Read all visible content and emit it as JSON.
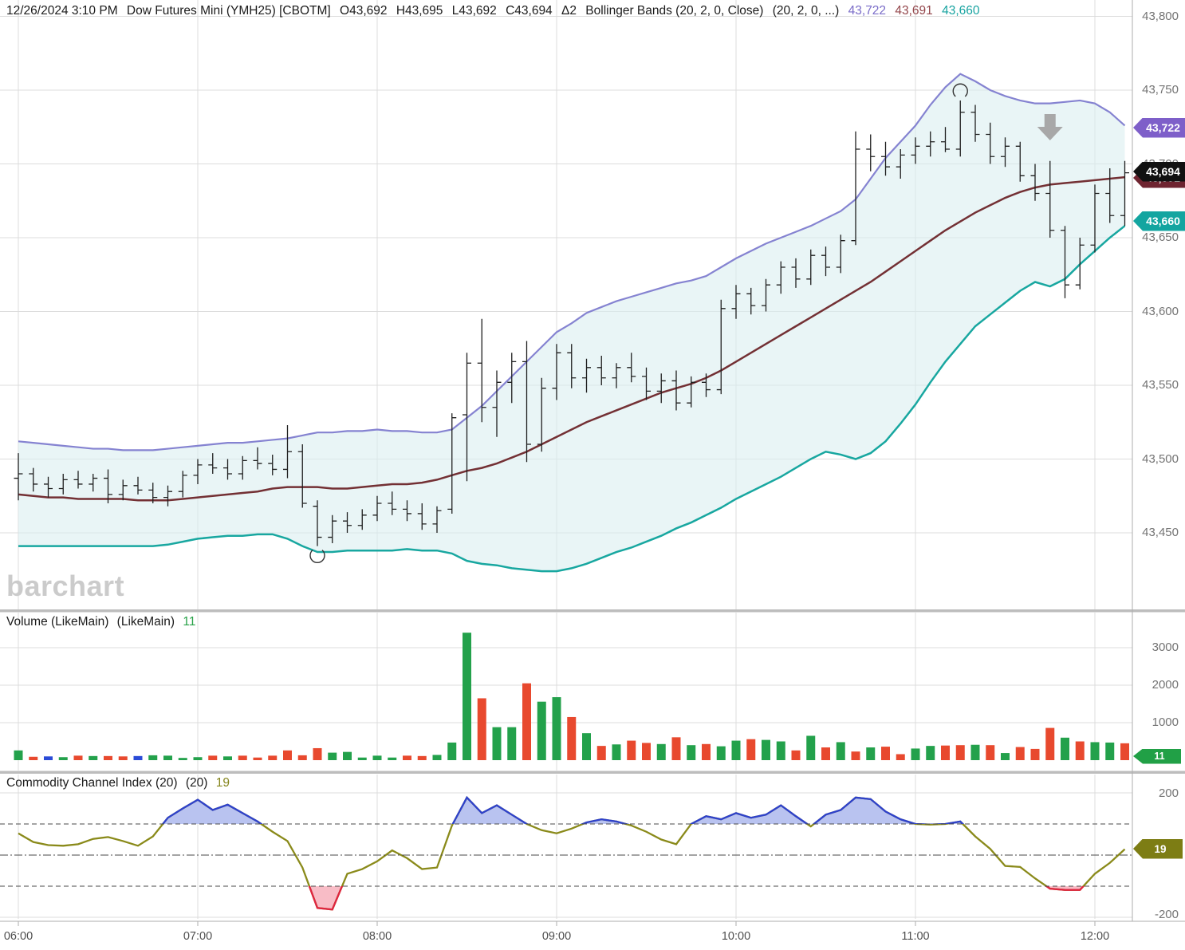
{
  "header": {
    "datetime": "12/26/2024 3:10 PM",
    "symbol_title": "Dow Futures Mini (YMH25) [CBOTM]",
    "open": "O43,692",
    "high": "H43,695",
    "low": "L43,692",
    "close": "C43,694",
    "change": "Δ2",
    "study_bb": "Bollinger Bands (20, 2, 0, Close)",
    "study_params": "(20, 2, 0, ...)",
    "bb_upper_value": "43,722",
    "bb_middle_value": "43,691",
    "bb_lower_value": "43,660"
  },
  "watermark": "barchart",
  "panels": {
    "volume_study": "Volume (LikeMain)",
    "volume_study2": "(LikeMain)",
    "volume_value": "11",
    "cci_study": "Commodity Channel Index (20)",
    "cci_study2": "(20)",
    "cci_value": "19"
  },
  "badges": [
    {
      "id": "bb-upper",
      "text": "43,722"
    },
    {
      "id": "bb-middle",
      "text": "43,691"
    },
    {
      "id": "last-price",
      "text": "43,694"
    },
    {
      "id": "bb-lower",
      "text": "43,660"
    },
    {
      "id": "volume",
      "text": "11"
    },
    {
      "id": "cci",
      "text": "19"
    }
  ],
  "colors": {
    "bb_fill": "#daeef0",
    "bb_upper": "#8583d1",
    "bb_middle": "#733034",
    "bb_lower": "#18a7a0",
    "bar": "#1f1f1f",
    "vol_up": "#23a14b",
    "vol_down": "#e8492e",
    "vol_neutral": "#2a4bd7",
    "cci_line": "#8a8a1a",
    "cci_over_line": "#2e41cc",
    "cci_over_fill": "#b9c3f0",
    "cci_under_line": "#e02440",
    "cci_under_fill": "#f8bcc6",
    "grid": "#dcdcdc",
    "dashed_level": "#4a4a4a",
    "axis_line": "#adadad",
    "axis_text": "#737373",
    "arrow": "#a8a8a8",
    "badge_upper": "#7e5fc9",
    "badge_middle": "#6e2430",
    "badge_close": "#111111",
    "badge_lower": "#13a5a0",
    "badge_volume": "#21a046",
    "badge_cci": "#7d7d14"
  },
  "chart_data": {
    "type": "ohlc",
    "symbol": "Dow Futures Mini (YMH25) [CBOTM]",
    "interval": "5-minute",
    "start_time": "06:00",
    "x_tick_labels": [
      "06:00",
      "07:00",
      "08:00",
      "09:00",
      "10:00",
      "11:00",
      "12:00"
    ],
    "price_axis": {
      "min": 43420,
      "max": 43800,
      "tick_step": 50,
      "tick_values": [
        43800,
        43750,
        43700,
        43650,
        43600,
        43550,
        43500,
        43450
      ],
      "tick_labels": [
        "43,800",
        "43,750",
        "43,700",
        "43,650",
        "43,600",
        "43,550",
        "43,500",
        "43,450"
      ]
    },
    "ohlc": [
      [
        43487,
        43504,
        43472,
        43490
      ],
      [
        43490,
        43494,
        43478,
        43483
      ],
      [
        43483,
        43488,
        43474,
        43480
      ],
      [
        43480,
        43490,
        43476,
        43486
      ],
      [
        43486,
        43492,
        43480,
        43483
      ],
      [
        43483,
        43490,
        43478,
        43487
      ],
      [
        43487,
        43493,
        43470,
        43476
      ],
      [
        43476,
        43486,
        43472,
        43482
      ],
      [
        43482,
        43488,
        43476,
        43479
      ],
      [
        43479,
        43484,
        43470,
        43474
      ],
      [
        43474,
        43482,
        43468,
        43478
      ],
      [
        43478,
        43492,
        43474,
        43489
      ],
      [
        43489,
        43500,
        43483,
        43496
      ],
      [
        43496,
        43504,
        43490,
        43494
      ],
      [
        43494,
        43500,
        43486,
        43490
      ],
      [
        43490,
        43502,
        43486,
        43499
      ],
      [
        43499,
        43508,
        43493,
        43497
      ],
      [
        43497,
        43503,
        43489,
        43493
      ],
      [
        43493,
        43523,
        43487,
        43505
      ],
      [
        43505,
        43510,
        43467,
        43470
      ],
      [
        43468,
        43472,
        43441,
        43447
      ],
      [
        43447,
        43462,
        43443,
        43458
      ],
      [
        43458,
        43464,
        43450,
        43455
      ],
      [
        43455,
        43466,
        43452,
        43462
      ],
      [
        43462,
        43475,
        43458,
        43470
      ],
      [
        43470,
        43478,
        43462,
        43466
      ],
      [
        43466,
        43472,
        43458,
        43463
      ],
      [
        43463,
        43470,
        43452,
        43456
      ],
      [
        43456,
        43468,
        43450,
        43465
      ],
      [
        43466,
        43531,
        43463,
        43528
      ],
      [
        43530,
        43572,
        43485,
        43565
      ],
      [
        43565,
        43595,
        43525,
        43535
      ],
      [
        43535,
        43560,
        43515,
        43552
      ],
      [
        43552,
        43572,
        43538,
        43566
      ],
      [
        43566,
        43580,
        43498,
        43510
      ],
      [
        43510,
        43555,
        43505,
        43548
      ],
      [
        43548,
        43578,
        43540,
        43572
      ],
      [
        43572,
        43578,
        43548,
        43555
      ],
      [
        43555,
        43568,
        43545,
        43562
      ],
      [
        43562,
        43570,
        43550,
        43555
      ],
      [
        43555,
        43565,
        43548,
        43562
      ],
      [
        43562,
        43572,
        43552,
        43556
      ],
      [
        43556,
        43562,
        43540,
        43546
      ],
      [
        43546,
        43558,
        43538,
        43553
      ],
      [
        43553,
        43560,
        43533,
        43538
      ],
      [
        43538,
        43556,
        43535,
        43552
      ],
      [
        43552,
        43558,
        43542,
        43547
      ],
      [
        43547,
        43608,
        43544,
        43602
      ],
      [
        43602,
        43618,
        43595,
        43612
      ],
      [
        43612,
        43616,
        43598,
        43604
      ],
      [
        43604,
        43622,
        43600,
        43618
      ],
      [
        43618,
        43634,
        43612,
        43630
      ],
      [
        43630,
        43636,
        43616,
        43622
      ],
      [
        43622,
        43642,
        43618,
        43638
      ],
      [
        43638,
        43644,
        43624,
        43630
      ],
      [
        43630,
        43652,
        43626,
        43648
      ],
      [
        43648,
        43722,
        43645,
        43710
      ],
      [
        43710,
        43720,
        43695,
        43705
      ],
      [
        43705,
        43715,
        43692,
        43698
      ],
      [
        43698,
        43710,
        43690,
        43706
      ],
      [
        43706,
        43718,
        43700,
        43712
      ],
      [
        43712,
        43722,
        43705,
        43715
      ],
      [
        43715,
        43725,
        43708,
        43710
      ],
      [
        43710,
        43743,
        43705,
        43735
      ],
      [
        43735,
        43740,
        43715,
        43720
      ],
      [
        43720,
        43728,
        43700,
        43705
      ],
      [
        43705,
        43718,
        43698,
        43712
      ],
      [
        43712,
        43715,
        43688,
        43692
      ],
      [
        43692,
        43700,
        43675,
        43680
      ],
      [
        43680,
        43702,
        43650,
        43655
      ],
      [
        43655,
        43658,
        43609,
        43618
      ],
      [
        43618,
        43650,
        43615,
        43645
      ],
      [
        43645,
        43686,
        43640,
        43680
      ],
      [
        43680,
        43697,
        43660,
        43665
      ],
      [
        43665,
        43702,
        43658,
        43694
      ]
    ],
    "bollinger": {
      "settings": "(20, 2, 0, Close)",
      "current": {
        "upper": 43722,
        "middle": 43691,
        "lower": 43660
      },
      "upper": [
        43512,
        43511,
        43510,
        43509,
        43508,
        43507,
        43507,
        43506,
        43506,
        43506,
        43507,
        43508,
        43509,
        43510,
        43511,
        43511,
        43512,
        43513,
        43514,
        43516,
        43518,
        43518,
        43519,
        43519,
        43520,
        43519,
        43519,
        43518,
        43518,
        43520,
        43528,
        43536,
        43546,
        43556,
        43566,
        43576,
        43586,
        43592,
        43599,
        43603,
        43607,
        43610,
        43613,
        43616,
        43619,
        43621,
        43624,
        43630,
        43636,
        43641,
        43646,
        43650,
        43654,
        43658,
        43663,
        43668,
        43676,
        43690,
        43704,
        43715,
        43726,
        43740,
        43752,
        43761,
        43756,
        43750,
        43746,
        43743,
        43741,
        43741,
        43742,
        43743,
        43741,
        43735,
        43726
      ],
      "middle": [
        43476,
        43475,
        43474,
        43474,
        43473,
        43473,
        43473,
        43473,
        43472,
        43472,
        43472,
        43473,
        43474,
        43475,
        43476,
        43477,
        43478,
        43480,
        43481,
        43481,
        43481,
        43480,
        43480,
        43481,
        43482,
        43483,
        43483,
        43484,
        43486,
        43489,
        43492,
        43494,
        43497,
        43501,
        43505,
        43510,
        43515,
        43520,
        43525,
        43529,
        43533,
        43537,
        43541,
        43545,
        43548,
        43551,
        43555,
        43560,
        43566,
        43572,
        43578,
        43584,
        43590,
        43596,
        43602,
        43608,
        43614,
        43620,
        43627,
        43634,
        43641,
        43648,
        43655,
        43661,
        43667,
        43672,
        43677,
        43681,
        43684,
        43686,
        43687,
        43688,
        43689,
        43690,
        43691
      ],
      "lower": [
        43441,
        43441,
        43441,
        43441,
        43441,
        43441,
        43441,
        43441,
        43441,
        43441,
        43442,
        43444,
        43446,
        43447,
        43448,
        43448,
        43449,
        43449,
        43446,
        43441,
        43437,
        43437,
        43438,
        43438,
        43438,
        43438,
        43439,
        43438,
        43438,
        43436,
        43431,
        43429,
        43428,
        43426,
        43425,
        43424,
        43424,
        43426,
        43429,
        43433,
        43437,
        43440,
        43444,
        43448,
        43453,
        43457,
        43462,
        43467,
        43473,
        43478,
        43483,
        43488,
        43494,
        43500,
        43505,
        43503,
        43500,
        43504,
        43512,
        43524,
        43537,
        43552,
        43566,
        43578,
        43590,
        43598,
        43606,
        43614,
        43620,
        43617,
        43622,
        43632,
        43641,
        43650,
        43658
      ]
    },
    "volume": {
      "axis_labels": [
        "3000",
        "2000",
        "1000"
      ],
      "current": 11,
      "values": [
        260,
        90,
        100,
        80,
        120,
        110,
        110,
        100,
        110,
        130,
        120,
        60,
        80,
        120,
        100,
        120,
        70,
        120,
        260,
        130,
        320,
        200,
        220,
        70,
        120,
        70,
        120,
        110,
        140,
        470,
        3400,
        1650,
        880,
        880,
        2050,
        1560,
        1680,
        1150,
        720,
        380,
        420,
        520,
        460,
        430,
        610,
        400,
        430,
        370,
        520,
        560,
        540,
        500,
        260,
        650,
        340,
        480,
        230,
        340,
        360,
        160,
        310,
        380,
        390,
        400,
        410,
        400,
        190,
        350,
        300,
        860,
        600,
        500,
        480,
        470,
        450
      ],
      "colors": [
        "g",
        "r",
        "b",
        "g",
        "r",
        "g",
        "r",
        "r",
        "b",
        "g",
        "g",
        "g",
        "g",
        "r",
        "g",
        "r",
        "r",
        "r",
        "r",
        "r",
        "r",
        "g",
        "g",
        "g",
        "g",
        "g",
        "r",
        "r",
        "g",
        "g",
        "g",
        "r",
        "g",
        "g",
        "r",
        "g",
        "g",
        "r",
        "g",
        "r",
        "g",
        "r",
        "r",
        "g",
        "r",
        "g",
        "r",
        "g",
        "g",
        "r",
        "g",
        "g",
        "r",
        "g",
        "r",
        "g",
        "r",
        "g",
        "r",
        "r",
        "g",
        "g",
        "r",
        "r",
        "g",
        "r",
        "g",
        "r",
        "r",
        "r",
        "g",
        "r",
        "g",
        "g",
        "r"
      ]
    },
    "cci": {
      "levels": [
        100,
        0,
        -100
      ],
      "axis_labels": [
        "200",
        "-200"
      ],
      "axis_range": [
        -200,
        200
      ],
      "current": 19,
      "values": [
        70,
        42,
        32,
        30,
        35,
        52,
        58,
        45,
        30,
        60,
        120,
        150,
        178,
        145,
        162,
        135,
        108,
        75,
        45,
        -40,
        -170,
        -175,
        -60,
        -45,
        -20,
        15,
        -10,
        -45,
        -40,
        95,
        185,
        135,
        160,
        130,
        100,
        80,
        70,
        85,
        105,
        115,
        108,
        95,
        75,
        50,
        35,
        100,
        125,
        115,
        135,
        120,
        130,
        160,
        125,
        92,
        130,
        145,
        185,
        180,
        140,
        115,
        100,
        98,
        100,
        108,
        60,
        20,
        -35,
        -38,
        -75,
        -108,
        -112,
        -112,
        -60,
        -25,
        19
      ]
    },
    "annotations": [
      {
        "type": "arc-low-marker",
        "bar": 20
      },
      {
        "type": "arc-high-marker",
        "bar": 63
      },
      {
        "type": "down-arrow",
        "bar": 69
      }
    ]
  }
}
